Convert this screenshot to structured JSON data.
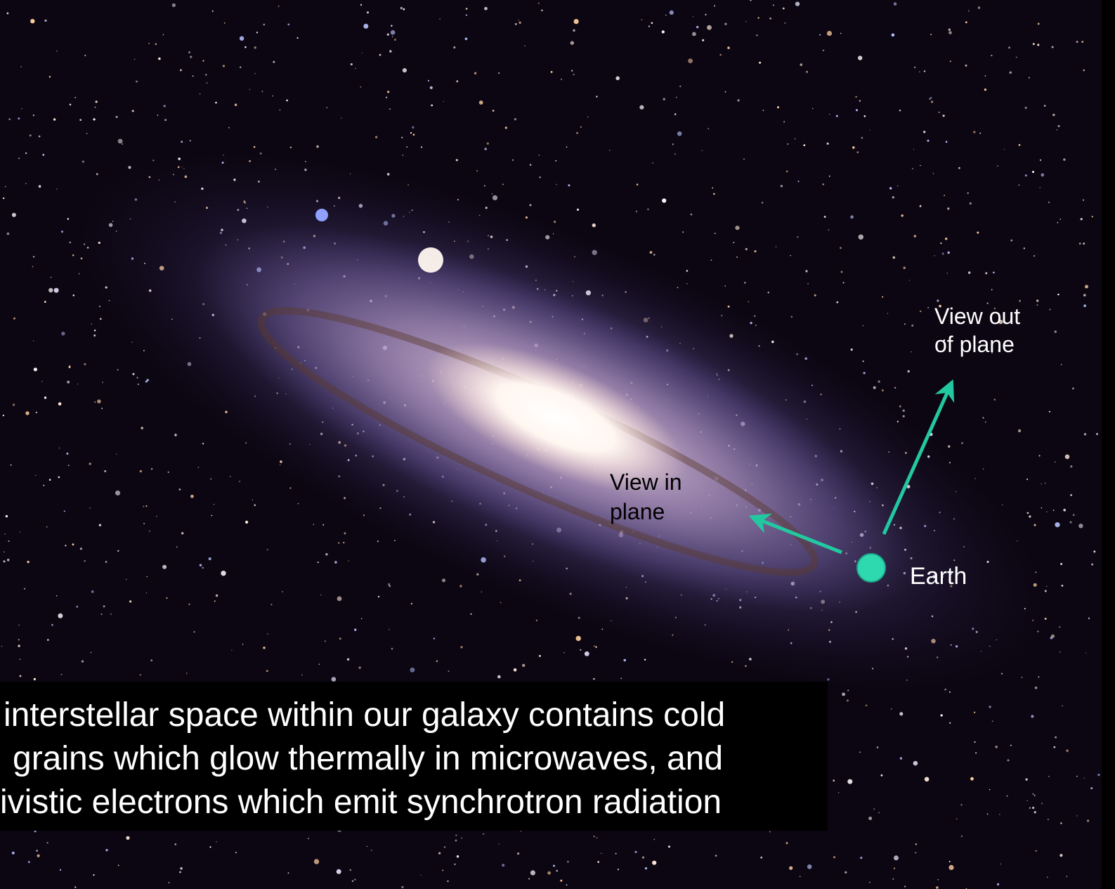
{
  "annotations": {
    "view_in_plane": [
      "View in",
      "plane"
    ],
    "view_out_of_plane": [
      "View out",
      "of plane"
    ],
    "earth": "Earth"
  },
  "caption": [
    "interstellar space within our galaxy contains cold",
    "grains which glow thermally in microwaves, and",
    "ivistic electrons which emit synchrotron radiation"
  ]
}
